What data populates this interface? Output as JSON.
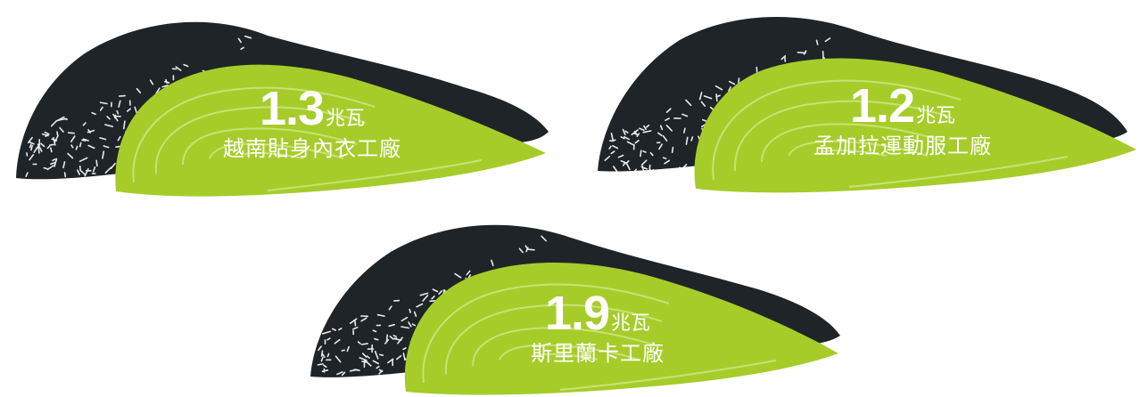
{
  "colors": {
    "dark": "#1f2428",
    "green": "#a6cc2a",
    "contour": "#c6e374",
    "speckle": "#ffffff"
  },
  "factories": [
    {
      "value": "1.3",
      "unit": "兆瓦",
      "name": "越南貼身內衣工廠"
    },
    {
      "value": "1.2",
      "unit": "兆瓦",
      "name": "孟加拉運動服工廠"
    },
    {
      "value": "1.9",
      "unit": "兆瓦",
      "name": "斯里蘭卡工廠"
    }
  ]
}
